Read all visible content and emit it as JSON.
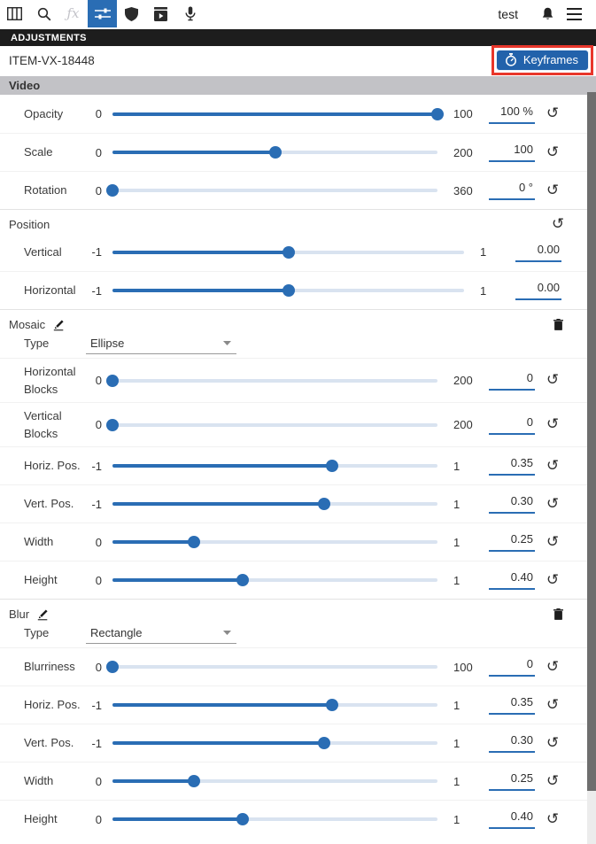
{
  "toolbar": {
    "user_label": "test",
    "items": [
      {
        "icon": "columns-icon",
        "state": "normal"
      },
      {
        "icon": "search-icon",
        "state": "normal"
      },
      {
        "icon": "effects-icon",
        "state": "disabled"
      },
      {
        "icon": "sliders-icon",
        "state": "active"
      },
      {
        "icon": "shield-icon",
        "state": "normal"
      },
      {
        "icon": "media-box-icon",
        "state": "normal"
      },
      {
        "icon": "microphone-icon",
        "state": "normal"
      }
    ],
    "right_items": [
      {
        "icon": "bell-icon"
      },
      {
        "icon": "menu-icon"
      }
    ]
  },
  "panel": {
    "title": "ADJUSTMENTS",
    "item_id": "ITEM-VX-18448",
    "keyframes_label": "Keyframes",
    "keyframes_highlighted": true
  },
  "colors": {
    "accent_blue": "#2a6db4",
    "keyframes_blue": "#2262ab",
    "highlight_red": "#e8362b",
    "section_bar_gray": "#c2c2c6",
    "title_bar_black": "#1d1d1d"
  },
  "sections": [
    {
      "style": "bar",
      "label": "Video",
      "rows": [
        {
          "type": "slider",
          "label": "Opacity",
          "min": "0",
          "max": "100",
          "value": "100 %",
          "percent": 100,
          "reset": true
        },
        {
          "type": "slider",
          "label": "Scale",
          "min": "0",
          "max": "200",
          "value": "100",
          "percent": 50,
          "reset": true
        },
        {
          "type": "slider",
          "label": "Rotation",
          "min": "0",
          "max": "360",
          "value": "0 °",
          "percent": 0,
          "reset": true
        }
      ]
    },
    {
      "style": "sub",
      "label": "Position",
      "header_reset": true,
      "rows": [
        {
          "type": "slider",
          "label": "Vertical",
          "min": "-1",
          "max": "1",
          "value": "0.00",
          "percent": 50,
          "reset": false
        },
        {
          "type": "slider",
          "label": "Horizontal",
          "min": "-1",
          "max": "1",
          "value": "0.00",
          "percent": 50,
          "reset": false
        }
      ]
    },
    {
      "style": "sub",
      "label": "Mosaic",
      "editable": true,
      "deletable": true,
      "rows": [
        {
          "type": "select",
          "label": "Type",
          "value": "Ellipse"
        },
        {
          "type": "slider",
          "label": "Horizontal Blocks",
          "min": "0",
          "max": "200",
          "value": "0",
          "percent": 0,
          "reset": true,
          "tall": true
        },
        {
          "type": "slider",
          "label": "Vertical Blocks",
          "min": "0",
          "max": "200",
          "value": "0",
          "percent": 0,
          "reset": true,
          "tall": true
        },
        {
          "type": "slider",
          "label": "Horiz. Pos.",
          "min": "-1",
          "max": "1",
          "value": "0.35",
          "percent": 67.5,
          "reset": true
        },
        {
          "type": "slider",
          "label": "Vert. Pos.",
          "min": "-1",
          "max": "1",
          "value": "0.30",
          "percent": 65,
          "reset": true
        },
        {
          "type": "slider",
          "label": "Width",
          "min": "0",
          "max": "1",
          "value": "0.25",
          "percent": 25,
          "reset": true
        },
        {
          "type": "slider",
          "label": "Height",
          "min": "0",
          "max": "1",
          "value": "0.40",
          "percent": 40,
          "reset": true
        }
      ]
    },
    {
      "style": "sub",
      "label": "Blur",
      "editable": true,
      "deletable": true,
      "rows": [
        {
          "type": "select",
          "label": "Type",
          "value": "Rectangle"
        },
        {
          "type": "slider",
          "label": "Blurriness",
          "min": "0",
          "max": "100",
          "value": "0",
          "percent": 0,
          "reset": true
        },
        {
          "type": "slider",
          "label": "Horiz. Pos.",
          "min": "-1",
          "max": "1",
          "value": "0.35",
          "percent": 67.5,
          "reset": true
        },
        {
          "type": "slider",
          "label": "Vert. Pos.",
          "min": "-1",
          "max": "1",
          "value": "0.30",
          "percent": 65,
          "reset": true
        },
        {
          "type": "slider",
          "label": "Width",
          "min": "0",
          "max": "1",
          "value": "0.25",
          "percent": 25,
          "reset": true
        },
        {
          "type": "slider",
          "label": "Height",
          "min": "0",
          "max": "1",
          "value": "0.40",
          "percent": 40,
          "reset": true
        }
      ]
    }
  ]
}
